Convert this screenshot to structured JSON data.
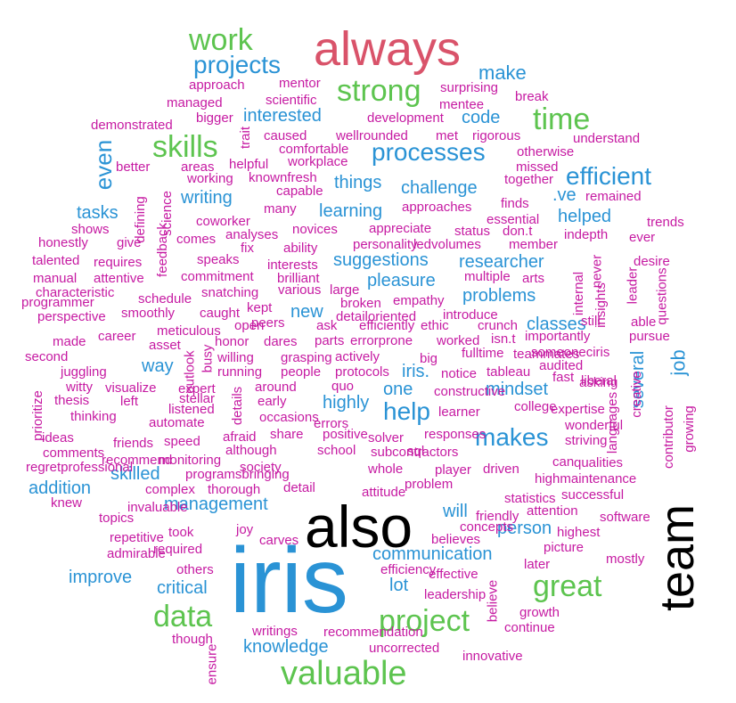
{
  "palette": {
    "black": "#000000",
    "blue": "#2a93d5",
    "green": "#5dc44f",
    "red": "#d9536a",
    "magenta": "#c61aa2"
  },
  "words": [
    {
      "text": "iris",
      "color": "blue"
    },
    {
      "text": "also",
      "color": "black"
    },
    {
      "text": "team",
      "color": "black"
    },
    {
      "text": "always",
      "color": "red"
    },
    {
      "text": "work",
      "color": "green"
    },
    {
      "text": "projects",
      "color": "blue"
    },
    {
      "text": "strong",
      "color": "green"
    },
    {
      "text": "time",
      "color": "green"
    },
    {
      "text": "skills",
      "color": "green"
    },
    {
      "text": "processes",
      "color": "blue"
    },
    {
      "text": "efficient",
      "color": "blue"
    },
    {
      "text": "valuable",
      "color": "green"
    },
    {
      "text": "project",
      "color": "green"
    },
    {
      "text": "data",
      "color": "green"
    },
    {
      "text": "great",
      "color": "green"
    },
    {
      "text": "makes",
      "color": "blue"
    },
    {
      "text": "help",
      "color": "blue"
    },
    {
      "text": "even",
      "color": "blue"
    },
    {
      "text": "job",
      "color": "blue"
    },
    {
      "text": "make",
      "color": "blue"
    },
    {
      "text": "interested",
      "color": "blue"
    },
    {
      "text": "code",
      "color": "blue"
    },
    {
      "text": "things",
      "color": "blue"
    },
    {
      "text": "challenge",
      "color": "blue"
    },
    {
      "text": "writing",
      "color": "blue"
    },
    {
      "text": "learning",
      "color": "blue"
    },
    {
      "text": "tasks",
      "color": "blue"
    },
    {
      "text": ".ve",
      "color": "blue"
    },
    {
      "text": "helped",
      "color": "blue"
    },
    {
      "text": "suggestions",
      "color": "blue"
    },
    {
      "text": "researcher",
      "color": "blue"
    },
    {
      "text": "pleasure",
      "color": "blue"
    },
    {
      "text": "problems",
      "color": "blue"
    },
    {
      "text": "new",
      "color": "blue"
    },
    {
      "text": "classes",
      "color": "blue"
    },
    {
      "text": "way",
      "color": "blue"
    },
    {
      "text": "iris.",
      "color": "blue"
    },
    {
      "text": "one",
      "color": "blue"
    },
    {
      "text": "mindset",
      "color": "blue"
    },
    {
      "text": "highly",
      "color": "blue"
    },
    {
      "text": "several",
      "color": "blue"
    },
    {
      "text": "skilled",
      "color": "blue"
    },
    {
      "text": "addition",
      "color": "blue"
    },
    {
      "text": "management",
      "color": "blue"
    },
    {
      "text": "will",
      "color": "blue"
    },
    {
      "text": "person",
      "color": "blue"
    },
    {
      "text": "communication",
      "color": "blue"
    },
    {
      "text": "lot",
      "color": "blue"
    },
    {
      "text": "improve",
      "color": "blue"
    },
    {
      "text": "critical",
      "color": "blue"
    },
    {
      "text": "knowledge",
      "color": "blue"
    },
    {
      "text": "mentor",
      "color": "magenta"
    },
    {
      "text": "approach",
      "color": "magenta"
    },
    {
      "text": "scientific",
      "color": "magenta"
    },
    {
      "text": "managed",
      "color": "magenta"
    },
    {
      "text": "surprising",
      "color": "magenta"
    },
    {
      "text": "mentee",
      "color": "magenta"
    },
    {
      "text": "break",
      "color": "magenta"
    },
    {
      "text": "bigger",
      "color": "magenta"
    },
    {
      "text": "demonstrated",
      "color": "magenta"
    },
    {
      "text": "development",
      "color": "magenta"
    },
    {
      "text": "trait",
      "color": "magenta"
    },
    {
      "text": "caused",
      "color": "magenta"
    },
    {
      "text": "wellrounded",
      "color": "magenta"
    },
    {
      "text": "met",
      "color": "magenta"
    },
    {
      "text": "rigorous",
      "color": "magenta"
    },
    {
      "text": "understand",
      "color": "magenta"
    },
    {
      "text": "comfortable",
      "color": "magenta"
    },
    {
      "text": "otherwise",
      "color": "magenta"
    },
    {
      "text": "better",
      "color": "magenta"
    },
    {
      "text": "areas",
      "color": "magenta"
    },
    {
      "text": "helpful",
      "color": "magenta"
    },
    {
      "text": "workplace",
      "color": "magenta"
    },
    {
      "text": "missed",
      "color": "magenta"
    },
    {
      "text": "working",
      "color": "magenta"
    },
    {
      "text": "knownfresh",
      "color": "magenta"
    },
    {
      "text": "together",
      "color": "magenta"
    },
    {
      "text": "capable",
      "color": "magenta"
    },
    {
      "text": "science",
      "color": "magenta"
    },
    {
      "text": "defining",
      "color": "magenta"
    },
    {
      "text": "remained",
      "color": "magenta"
    },
    {
      "text": "finds",
      "color": "magenta"
    },
    {
      "text": "coworker",
      "color": "magenta"
    },
    {
      "text": "many",
      "color": "magenta"
    },
    {
      "text": "approaches",
      "color": "magenta"
    },
    {
      "text": "essential",
      "color": "magenta"
    },
    {
      "text": "trends",
      "color": "magenta"
    },
    {
      "text": "shows",
      "color": "magenta"
    },
    {
      "text": "feedback",
      "color": "magenta"
    },
    {
      "text": "analyses",
      "color": "magenta"
    },
    {
      "text": "novices",
      "color": "magenta"
    },
    {
      "text": "appreciate",
      "color": "magenta"
    },
    {
      "text": "status",
      "color": "magenta"
    },
    {
      "text": "don.t",
      "color": "magenta"
    },
    {
      "text": "indepth",
      "color": "magenta"
    },
    {
      "text": "honestly",
      "color": "magenta"
    },
    {
      "text": "give",
      "color": "magenta"
    },
    {
      "text": "comes",
      "color": "magenta"
    },
    {
      "text": "fix",
      "color": "magenta"
    },
    {
      "text": "ability",
      "color": "magenta"
    },
    {
      "text": "personality",
      "color": "magenta"
    },
    {
      "text": "ledvolumes",
      "color": "magenta"
    },
    {
      "text": "member",
      "color": "magenta"
    },
    {
      "text": "ever",
      "color": "magenta"
    },
    {
      "text": "talented",
      "color": "magenta"
    },
    {
      "text": "requires",
      "color": "magenta"
    },
    {
      "text": "speaks",
      "color": "magenta"
    },
    {
      "text": "interests",
      "color": "magenta"
    },
    {
      "text": "desire",
      "color": "magenta"
    },
    {
      "text": "manual",
      "color": "magenta"
    },
    {
      "text": "attentive",
      "color": "magenta"
    },
    {
      "text": "commitment",
      "color": "magenta"
    },
    {
      "text": "brilliant",
      "color": "magenta"
    },
    {
      "text": "multiple",
      "color": "magenta"
    },
    {
      "text": "arts",
      "color": "magenta"
    },
    {
      "text": "internal",
      "color": "magenta"
    },
    {
      "text": "never",
      "color": "magenta"
    },
    {
      "text": "leader",
      "color": "magenta"
    },
    {
      "text": "questions",
      "color": "magenta"
    },
    {
      "text": "characteristic",
      "color": "magenta"
    },
    {
      "text": "snatching",
      "color": "magenta"
    },
    {
      "text": "various",
      "color": "magenta"
    },
    {
      "text": "large",
      "color": "magenta"
    },
    {
      "text": "insights",
      "color": "magenta"
    },
    {
      "text": "programmer",
      "color": "magenta"
    },
    {
      "text": "schedule",
      "color": "magenta"
    },
    {
      "text": "kept",
      "color": "magenta"
    },
    {
      "text": "broken",
      "color": "magenta"
    },
    {
      "text": "empathy",
      "color": "magenta"
    },
    {
      "text": "perspective",
      "color": "magenta"
    },
    {
      "text": "smoothly",
      "color": "magenta"
    },
    {
      "text": "caught",
      "color": "magenta"
    },
    {
      "text": "peers",
      "color": "magenta"
    },
    {
      "text": "detailoriented",
      "color": "magenta"
    },
    {
      "text": "introduce",
      "color": "magenta"
    },
    {
      "text": "still",
      "color": "magenta"
    },
    {
      "text": "able",
      "color": "magenta"
    },
    {
      "text": "meticulous",
      "color": "magenta"
    },
    {
      "text": "open",
      "color": "magenta"
    },
    {
      "text": "ask",
      "color": "magenta"
    },
    {
      "text": "efficiently",
      "color": "magenta"
    },
    {
      "text": "ethic",
      "color": "magenta"
    },
    {
      "text": "crunch",
      "color": "magenta"
    },
    {
      "text": "made",
      "color": "magenta"
    },
    {
      "text": "career",
      "color": "magenta"
    },
    {
      "text": "parts",
      "color": "magenta"
    },
    {
      "text": "errorprone",
      "color": "magenta"
    },
    {
      "text": "worked",
      "color": "magenta"
    },
    {
      "text": "isn.t",
      "color": "magenta"
    },
    {
      "text": "importantly",
      "color": "magenta"
    },
    {
      "text": "pursue",
      "color": "magenta"
    },
    {
      "text": "asset",
      "color": "magenta"
    },
    {
      "text": "honor",
      "color": "magenta"
    },
    {
      "text": "dares",
      "color": "magenta"
    },
    {
      "text": "fulltime",
      "color": "magenta"
    },
    {
      "text": "teammates",
      "color": "magenta"
    },
    {
      "text": "someoneciris",
      "color": "magenta"
    },
    {
      "text": "second",
      "color": "magenta"
    },
    {
      "text": "outlook",
      "color": "magenta"
    },
    {
      "text": "willing",
      "color": "magenta"
    },
    {
      "text": "grasping",
      "color": "magenta"
    },
    {
      "text": "actively",
      "color": "magenta"
    },
    {
      "text": "big",
      "color": "magenta"
    },
    {
      "text": "audited",
      "color": "magenta"
    },
    {
      "text": "juggling",
      "color": "magenta"
    },
    {
      "text": "busy",
      "color": "magenta"
    },
    {
      "text": "running",
      "color": "magenta"
    },
    {
      "text": "people",
      "color": "magenta"
    },
    {
      "text": "protocols",
      "color": "magenta"
    },
    {
      "text": "notice",
      "color": "magenta"
    },
    {
      "text": "tableau",
      "color": "magenta"
    },
    {
      "text": "fast",
      "color": "magenta"
    },
    {
      "text": "liberal",
      "color": "magenta"
    },
    {
      "text": "creative",
      "color": "magenta"
    },
    {
      "text": "witty",
      "color": "magenta"
    },
    {
      "text": "visualize",
      "color": "magenta"
    },
    {
      "text": "expert",
      "color": "magenta"
    },
    {
      "text": "around",
      "color": "magenta"
    },
    {
      "text": "quo",
      "color": "magenta"
    },
    {
      "text": "constructive",
      "color": "magenta"
    },
    {
      "text": "asking",
      "color": "magenta"
    },
    {
      "text": "prioritize",
      "color": "magenta"
    },
    {
      "text": "thesis",
      "color": "magenta"
    },
    {
      "text": "left",
      "color": "magenta"
    },
    {
      "text": "stellar",
      "color": "magenta"
    },
    {
      "text": "details",
      "color": "magenta"
    },
    {
      "text": "early",
      "color": "magenta"
    },
    {
      "text": "college",
      "color": "magenta"
    },
    {
      "text": "expertise",
      "color": "magenta"
    },
    {
      "text": "contributor",
      "color": "magenta"
    },
    {
      "text": "thinking",
      "color": "magenta"
    },
    {
      "text": "listened",
      "color": "magenta"
    },
    {
      "text": "occasions",
      "color": "magenta"
    },
    {
      "text": "learner",
      "color": "magenta"
    },
    {
      "text": "languages",
      "color": "magenta"
    },
    {
      "text": "growing",
      "color": "magenta"
    },
    {
      "text": "automate",
      "color": "magenta"
    },
    {
      "text": "errors",
      "color": "magenta"
    },
    {
      "text": "wonderful",
      "color": "magenta"
    },
    {
      "text": "ideas",
      "color": "magenta"
    },
    {
      "text": "afraid",
      "color": "magenta"
    },
    {
      "text": "share",
      "color": "magenta"
    },
    {
      "text": "positive",
      "color": "magenta"
    },
    {
      "text": "solver",
      "color": "magenta"
    },
    {
      "text": "responses",
      "color": "magenta"
    },
    {
      "text": "striving",
      "color": "magenta"
    },
    {
      "text": "friends",
      "color": "magenta"
    },
    {
      "text": "speed",
      "color": "magenta"
    },
    {
      "text": "school",
      "color": "magenta"
    },
    {
      "text": "comments",
      "color": "magenta"
    },
    {
      "text": "although",
      "color": "magenta"
    },
    {
      "text": "subcontractors",
      "color": "magenta"
    },
    {
      "text": "sql",
      "color": "magenta"
    },
    {
      "text": "can",
      "color": "magenta"
    },
    {
      "text": "recommend",
      "color": "magenta"
    },
    {
      "text": "monitoring",
      "color": "magenta"
    },
    {
      "text": "qualities",
      "color": "magenta"
    },
    {
      "text": "regretprofessional",
      "color": "magenta"
    },
    {
      "text": "society",
      "color": "magenta"
    },
    {
      "text": "whole",
      "color": "magenta"
    },
    {
      "text": "player",
      "color": "magenta"
    },
    {
      "text": "driven",
      "color": "magenta"
    },
    {
      "text": "programsbringing",
      "color": "magenta"
    },
    {
      "text": "highmaintenance",
      "color": "magenta"
    },
    {
      "text": "problem",
      "color": "magenta"
    },
    {
      "text": "complex",
      "color": "magenta"
    },
    {
      "text": "thorough",
      "color": "magenta"
    },
    {
      "text": "detail",
      "color": "magenta"
    },
    {
      "text": "attitude",
      "color": "magenta"
    },
    {
      "text": "statistics",
      "color": "magenta"
    },
    {
      "text": "successful",
      "color": "magenta"
    },
    {
      "text": "knew",
      "color": "magenta"
    },
    {
      "text": "invaluable",
      "color": "magenta"
    },
    {
      "text": "attention",
      "color": "magenta"
    },
    {
      "text": "topics",
      "color": "magenta"
    },
    {
      "text": "friendly",
      "color": "magenta"
    },
    {
      "text": "software",
      "color": "magenta"
    },
    {
      "text": "joy",
      "color": "magenta"
    },
    {
      "text": "concepts",
      "color": "magenta"
    },
    {
      "text": "highest",
      "color": "magenta"
    },
    {
      "text": "repetitive",
      "color": "magenta"
    },
    {
      "text": "took",
      "color": "magenta"
    },
    {
      "text": "carves",
      "color": "magenta"
    },
    {
      "text": "believes",
      "color": "magenta"
    },
    {
      "text": "picture",
      "color": "magenta"
    },
    {
      "text": "admirable",
      "color": "magenta"
    },
    {
      "text": "required",
      "color": "magenta"
    },
    {
      "text": "later",
      "color": "magenta"
    },
    {
      "text": "mostly",
      "color": "magenta"
    },
    {
      "text": "others",
      "color": "magenta"
    },
    {
      "text": "efficiency",
      "color": "magenta"
    },
    {
      "text": "effective",
      "color": "magenta"
    },
    {
      "text": "leadership",
      "color": "magenta"
    },
    {
      "text": "believe",
      "color": "magenta"
    },
    {
      "text": "growth",
      "color": "magenta"
    },
    {
      "text": "though",
      "color": "magenta"
    },
    {
      "text": "ensure",
      "color": "magenta"
    },
    {
      "text": "writings",
      "color": "magenta"
    },
    {
      "text": "recommendation",
      "color": "magenta"
    },
    {
      "text": "continue",
      "color": "magenta"
    },
    {
      "text": "uncorrected",
      "color": "magenta"
    },
    {
      "text": "innovative",
      "color": "magenta"
    }
  ]
}
